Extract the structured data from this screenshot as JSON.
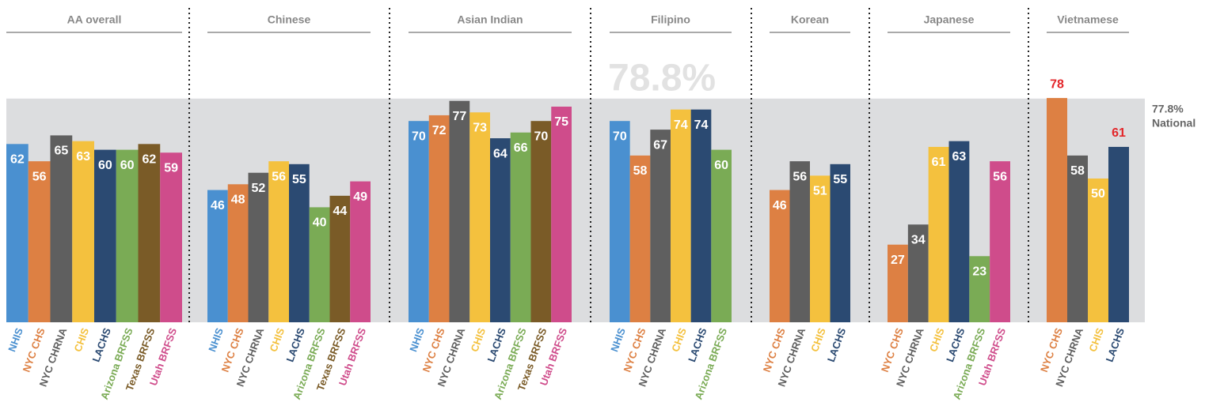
{
  "national": {
    "value": 77.8,
    "label": "77.8%",
    "name": "National"
  },
  "chart_data": [
    {
      "type": "bar",
      "title": "AA overall",
      "ylim": [
        0,
        80
      ],
      "categories": [
        "NHIS",
        "NYC CHS",
        "NYC CHRNA",
        "CHIS",
        "LACHS",
        "Arizona BRFSS",
        "Texas BRFSS",
        "Utah BRFSS"
      ],
      "values": [
        62,
        56,
        65,
        63,
        60,
        60,
        62,
        59
      ],
      "colors": [
        "#4a90d0",
        "#dd8043",
        "#5f5f5f",
        "#f4c13e",
        "#2b4a72",
        "#7aab55",
        "#7a5b27",
        "#cf4c8b"
      ]
    },
    {
      "type": "bar",
      "title": "Chinese",
      "ylim": [
        0,
        80
      ],
      "categories": [
        "NHIS",
        "NYC CHS",
        "NYC CHRNA",
        "CHIS",
        "LACHS",
        "Arizona BRFSS",
        "Texas BRFSS",
        "Utah BRFSS"
      ],
      "values": [
        46,
        48,
        52,
        56,
        55,
        40,
        44,
        49
      ],
      "colors": [
        "#4a90d0",
        "#dd8043",
        "#5f5f5f",
        "#f4c13e",
        "#2b4a72",
        "#7aab55",
        "#7a5b27",
        "#cf4c8b"
      ]
    },
    {
      "type": "bar",
      "title": "Asian Indian",
      "ylim": [
        0,
        80
      ],
      "categories": [
        "NHIS",
        "NYC CHS",
        "NYC CHRNA",
        "CHIS",
        "LACHS",
        "Arizona BRFSS",
        "Texas BRFSS",
        "Utah BRFSS"
      ],
      "values": [
        70,
        72,
        77,
        73,
        64,
        66,
        70,
        75
      ],
      "colors": [
        "#4a90d0",
        "#dd8043",
        "#5f5f5f",
        "#f4c13e",
        "#2b4a72",
        "#7aab55",
        "#7a5b27",
        "#cf4c8b"
      ]
    },
    {
      "type": "bar",
      "title": "Filipino",
      "ylim": [
        0,
        80
      ],
      "annotation": "78.8%",
      "categories": [
        "NHIS",
        "NYC CHS",
        "NYC CHRNA",
        "CHIS",
        "LACHS",
        "Arizona BRFSS"
      ],
      "values": [
        70,
        58,
        67,
        74,
        74,
        60
      ],
      "colors": [
        "#4a90d0",
        "#dd8043",
        "#5f5f5f",
        "#f4c13e",
        "#2b4a72",
        "#7aab55"
      ]
    },
    {
      "type": "bar",
      "title": "Korean",
      "ylim": [
        0,
        80
      ],
      "categories": [
        "NYC CHS",
        "NYC CHRNA",
        "CHIS",
        "LACHS"
      ],
      "values": [
        46,
        56,
        51,
        55
      ],
      "colors": [
        "#dd8043",
        "#5f5f5f",
        "#f4c13e",
        "#2b4a72"
      ]
    },
    {
      "type": "bar",
      "title": "Japanese",
      "ylim": [
        0,
        80
      ],
      "categories": [
        "NYC CHS",
        "NYC CHRNA",
        "CHIS",
        "LACHS",
        "Arizona BRFSS",
        "Utah BRFSS"
      ],
      "values": [
        27,
        34,
        61,
        63,
        23,
        56
      ],
      "colors": [
        "#dd8043",
        "#5f5f5f",
        "#f4c13e",
        "#2b4a72",
        "#7aab55",
        "#cf4c8b"
      ]
    },
    {
      "type": "bar",
      "title": "Vietnamese",
      "ylim": [
        0,
        80
      ],
      "categories": [
        "NYC CHS",
        "NYC CHRNA",
        "CHIS",
        "LACHS"
      ],
      "values": [
        78,
        58,
        50,
        61
      ],
      "colors": [
        "#dd8043",
        "#5f5f5f",
        "#f4c13e",
        "#2b4a72"
      ],
      "label_colors": [
        "#e3262a",
        "#ffffff",
        "#ffffff",
        "#e3262a"
      ],
      "label_positions": [
        "above",
        "inside",
        "inside",
        "above"
      ]
    }
  ]
}
